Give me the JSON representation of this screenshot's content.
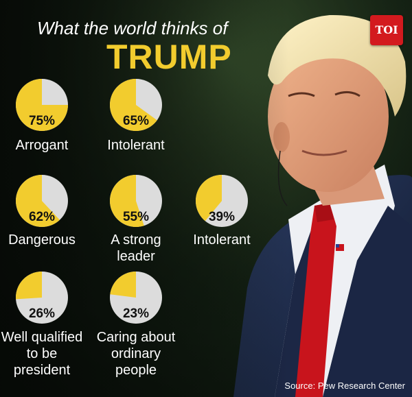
{
  "header": {
    "subtitle": "What the world thinks of",
    "title": "TRUMP",
    "logo_text": "TOI"
  },
  "source": "Source: Pew Research Center",
  "colors": {
    "accent": "#f2cc2e",
    "pie_rest": "#dcdcdc",
    "text": "#ffffff",
    "logo_bg": "#d31a1e"
  },
  "chart_data": {
    "type": "pie",
    "value_unit": "%",
    "items": [
      {
        "label": "Arrogant",
        "value": 75
      },
      {
        "label": "Intolerant",
        "value": 65
      },
      {
        "label": "Dangerous",
        "value": 62
      },
      {
        "label": "A strong leader",
        "value": 55
      },
      {
        "label": "Intolerant",
        "value": 39
      },
      {
        "label": "Well qualified to be president",
        "value": 26
      },
      {
        "label": "Caring about ordinary people",
        "value": 23
      }
    ]
  }
}
